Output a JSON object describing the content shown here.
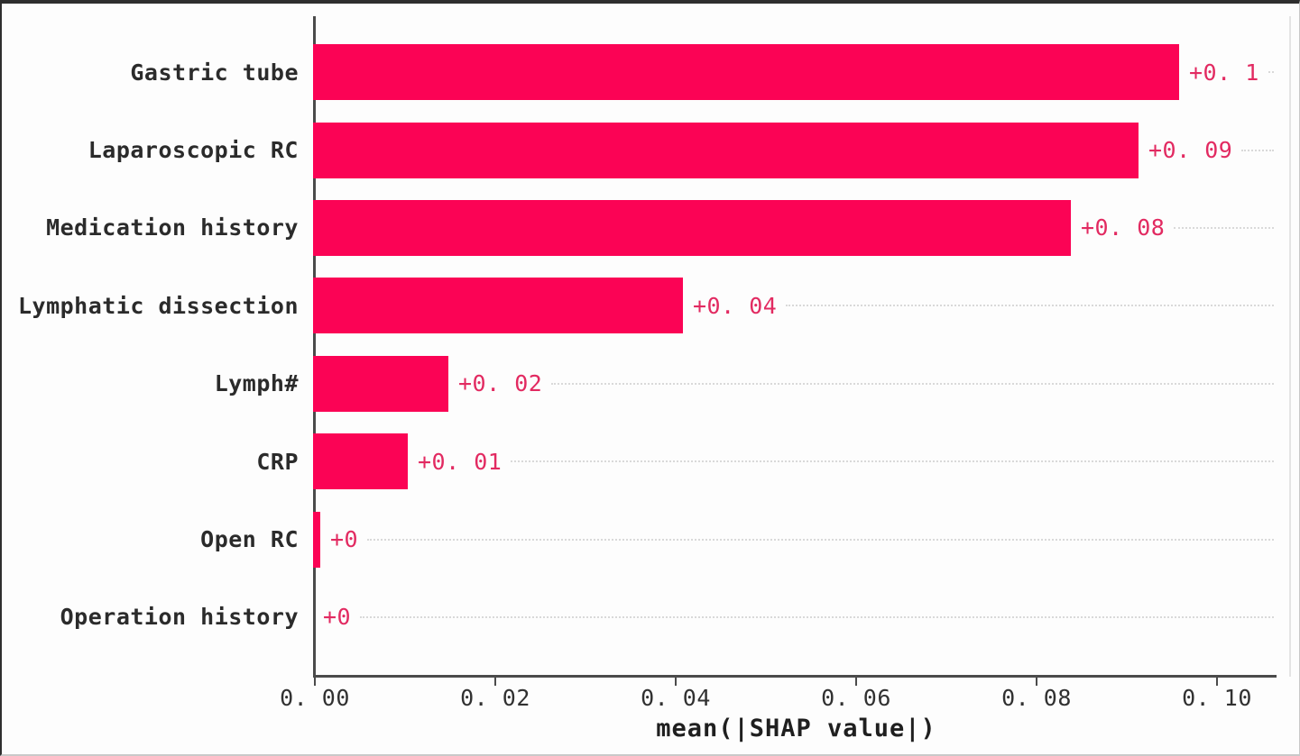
{
  "chart_data": {
    "type": "bar",
    "orientation": "horizontal",
    "title": "",
    "xlabel": "mean(|SHAP value|)",
    "ylabel": "",
    "categories": [
      "Gastric tube",
      "Laparoscopic RC",
      "Medication history",
      "Lymphatic dissection",
      "Lymph#",
      "CRP",
      "Open RC",
      "Operation history"
    ],
    "values": [
      0.096,
      0.0915,
      0.084,
      0.041,
      0.015,
      0.0105,
      0.0008,
      0
    ],
    "bar_labels": [
      "+0. 1",
      "+0. 09",
      "+0. 08",
      "+0. 04",
      "+0. 02",
      "+0. 01",
      "+0",
      "+0"
    ],
    "x_ticks": [
      {
        "value": 0.0,
        "label": "0. 00"
      },
      {
        "value": 0.02,
        "label": "0. 02"
      },
      {
        "value": 0.04,
        "label": "0. 04"
      },
      {
        "value": 0.06,
        "label": "0. 06"
      },
      {
        "value": 0.08,
        "label": "0. 08"
      },
      {
        "value": 0.1,
        "label": "0. 10"
      }
    ],
    "xlim": [
      0,
      0.1068
    ],
    "legend_position": "none",
    "grid": "dotted horizontal leader lines to the right of each value label",
    "bar_color": "#fb0355",
    "value_label_color": "#e22a61",
    "axis_color": "#4b4b4b",
    "category_label_color": "#2b2b2b"
  }
}
